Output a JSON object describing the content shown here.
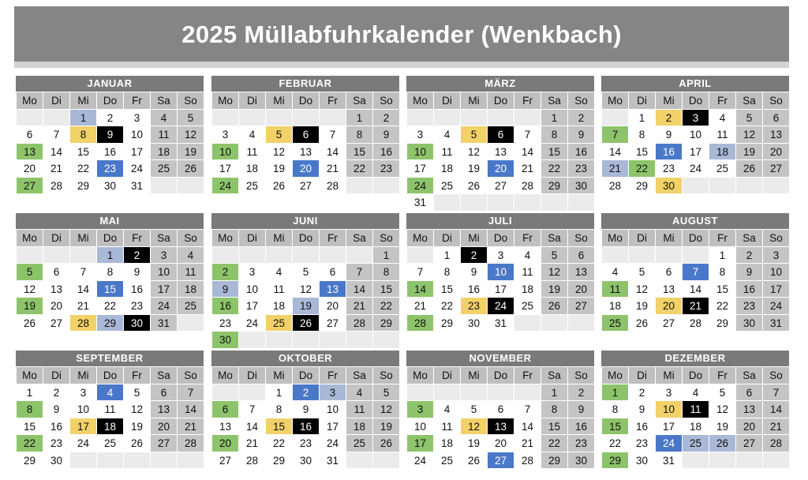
{
  "title": "2025 Müllabfuhrkalender (Wenkbach)",
  "weekdays": [
    "Mo",
    "Di",
    "Mi",
    "Do",
    "Fr",
    "Sa",
    "So"
  ],
  "colors": {
    "header_bar": "#858585",
    "month_bar": "#7a7a7a",
    "g": "#8dc46b",
    "y": "#f2d168",
    "k": "#000000",
    "b": "#4a78c9",
    "lb": "#a9b8d6"
  },
  "months": [
    {
      "name": "JANUAR",
      "start": 2,
      "days": 31,
      "marks": {
        "1": "lb",
        "8": "y",
        "9": "k",
        "13": "g",
        "23": "b",
        "27": "g"
      }
    },
    {
      "name": "FEBRUAR",
      "start": 5,
      "days": 28,
      "marks": {
        "5": "y",
        "6": "k",
        "10": "g",
        "20": "b",
        "24": "g"
      }
    },
    {
      "name": "MÄRZ",
      "start": 5,
      "days": 31,
      "marks": {
        "5": "y",
        "6": "k",
        "10": "g",
        "20": "b",
        "24": "g"
      }
    },
    {
      "name": "APRIL",
      "start": 1,
      "days": 30,
      "marks": {
        "2": "y",
        "3": "k",
        "7": "g",
        "16": "b",
        "18": "lb",
        "21": "lb",
        "22": "g",
        "30": "y"
      }
    },
    {
      "name": "MAI",
      "start": 3,
      "days": 31,
      "marks": {
        "1": "lb",
        "2": "k",
        "5": "g",
        "15": "b",
        "19": "g",
        "28": "y",
        "29": "lb",
        "30": "k"
      }
    },
    {
      "name": "JUNI",
      "start": 6,
      "days": 30,
      "marks": {
        "2": "g",
        "9": "lb",
        "13": "b",
        "16": "g",
        "19": "lb",
        "25": "y",
        "26": "k",
        "30": "g"
      }
    },
    {
      "name": "JULI",
      "start": 1,
      "days": 31,
      "marks": {
        "2": "k",
        "10": "b",
        "14": "g",
        "23": "y",
        "24": "k",
        "28": "g"
      }
    },
    {
      "name": "AUGUST",
      "start": 4,
      "days": 31,
      "marks": {
        "7": "b",
        "11": "g",
        "20": "y",
        "21": "k",
        "25": "g"
      }
    },
    {
      "name": "SEPTEMBER",
      "start": 0,
      "days": 30,
      "marks": {
        "4": "b",
        "8": "g",
        "17": "y",
        "18": "k",
        "22": "g"
      }
    },
    {
      "name": "OKTOBER",
      "start": 2,
      "days": 31,
      "marks": {
        "2": "b",
        "3": "lb",
        "6": "g",
        "15": "y",
        "16": "k",
        "20": "g"
      }
    },
    {
      "name": "NOVEMBER",
      "start": 5,
      "days": 30,
      "marks": {
        "3": "g",
        "12": "y",
        "13": "k",
        "17": "g",
        "27": "b"
      }
    },
    {
      "name": "DEZEMBER",
      "start": 0,
      "days": 31,
      "marks": {
        "1": "g",
        "10": "y",
        "11": "k",
        "15": "g",
        "24": "b",
        "25": "lb",
        "26": "lb",
        "29": "g"
      }
    }
  ]
}
